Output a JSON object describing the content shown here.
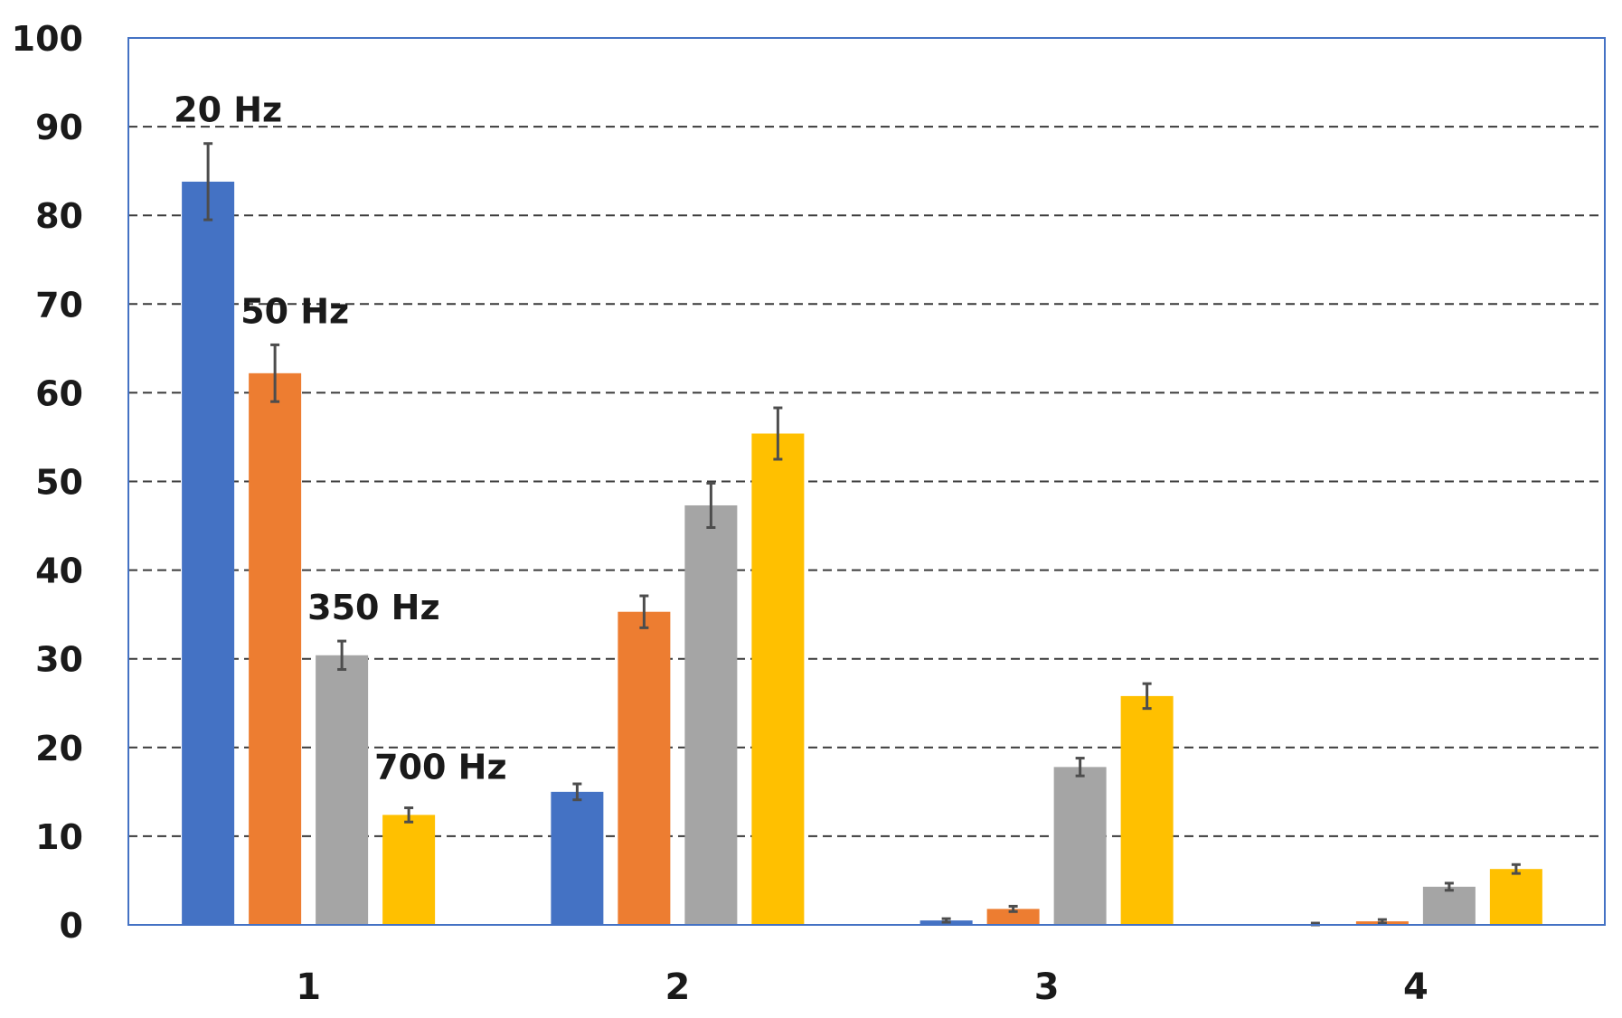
{
  "chart_data": {
    "type": "bar",
    "title": "",
    "xlabel": "",
    "ylabel": "",
    "ylim": [
      0,
      100
    ],
    "yticks": [
      0,
      10,
      20,
      30,
      40,
      50,
      60,
      70,
      80,
      90,
      100
    ],
    "grid": true,
    "grid_style": "dashed horizontal",
    "legend": "inline labels above first group bars",
    "categories": [
      "1",
      "2",
      "3",
      "4"
    ],
    "error_bar_color": "#4d4d4d",
    "series": [
      {
        "name": "20 Hz",
        "color": "#4472C4",
        "values": [
          83.8,
          15.0,
          0.5,
          0.1
        ],
        "errors": [
          4.3,
          0.9,
          0.2,
          0.1
        ]
      },
      {
        "name": "50 Hz",
        "color": "#ED7D31",
        "values": [
          62.2,
          35.3,
          1.8,
          0.4
        ],
        "errors": [
          3.2,
          1.8,
          0.3,
          0.2
        ]
      },
      {
        "name": "350 Hz",
        "color": "#A5A5A5",
        "values": [
          30.4,
          47.3,
          17.8,
          4.3
        ],
        "errors": [
          1.6,
          2.5,
          1.0,
          0.4
        ]
      },
      {
        "name": "700 Hz",
        "color": "#FFC000",
        "values": [
          12.4,
          55.4,
          25.8,
          6.3
        ],
        "errors": [
          0.8,
          2.9,
          1.4,
          0.5
        ]
      }
    ]
  }
}
